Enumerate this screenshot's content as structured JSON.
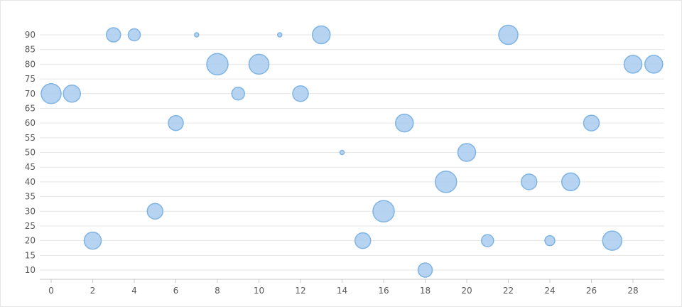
{
  "chart_data": {
    "type": "scatter",
    "title": "",
    "xlabel": "",
    "ylabel": "",
    "xlim": [
      0,
      29
    ],
    "ylim": [
      7,
      93
    ],
    "x_ticks": [
      0,
      2,
      4,
      6,
      8,
      10,
      12,
      14,
      16,
      18,
      20,
      22,
      24,
      26,
      28
    ],
    "y_ticks": [
      10,
      15,
      20,
      25,
      30,
      35,
      40,
      45,
      50,
      55,
      60,
      65,
      70,
      75,
      80,
      85,
      90
    ],
    "grid": true,
    "bubble_color": "#a9cdee",
    "bubble_stroke": "#7fb4e3",
    "points": [
      {
        "x": 0,
        "y": 70,
        "size": 14
      },
      {
        "x": 1,
        "y": 70,
        "size": 12
      },
      {
        "x": 2,
        "y": 20,
        "size": 12
      },
      {
        "x": 3,
        "y": 90,
        "size": 10
      },
      {
        "x": 4,
        "y": 90,
        "size": 8.5
      },
      {
        "x": 5,
        "y": 30,
        "size": 11
      },
      {
        "x": 6,
        "y": 60,
        "size": 10.5
      },
      {
        "x": 7,
        "y": 90,
        "size": 3
      },
      {
        "x": 8,
        "y": 80,
        "size": 15
      },
      {
        "x": 9,
        "y": 70,
        "size": 9
      },
      {
        "x": 10,
        "y": 80,
        "size": 14
      },
      {
        "x": 11,
        "y": 90,
        "size": 3
      },
      {
        "x": 12,
        "y": 70,
        "size": 11
      },
      {
        "x": 13,
        "y": 90,
        "size": 12.5
      },
      {
        "x": 14,
        "y": 50,
        "size": 3
      },
      {
        "x": 15,
        "y": 20,
        "size": 11
      },
      {
        "x": 16,
        "y": 30,
        "size": 15
      },
      {
        "x": 17,
        "y": 60,
        "size": 12.5
      },
      {
        "x": 18,
        "y": 10,
        "size": 10
      },
      {
        "x": 19,
        "y": 40,
        "size": 15
      },
      {
        "x": 20,
        "y": 50,
        "size": 12.5
      },
      {
        "x": 21,
        "y": 20,
        "size": 8.5
      },
      {
        "x": 22,
        "y": 90,
        "size": 13.5
      },
      {
        "x": 23,
        "y": 40,
        "size": 11
      },
      {
        "x": 24,
        "y": 20,
        "size": 7
      },
      {
        "x": 25,
        "y": 40,
        "size": 12.5
      },
      {
        "x": 26,
        "y": 60,
        "size": 11
      },
      {
        "x": 27,
        "y": 20,
        "size": 13.5
      },
      {
        "x": 28,
        "y": 80,
        "size": 12.5
      },
      {
        "x": 29,
        "y": 80,
        "size": 12.5
      }
    ]
  }
}
